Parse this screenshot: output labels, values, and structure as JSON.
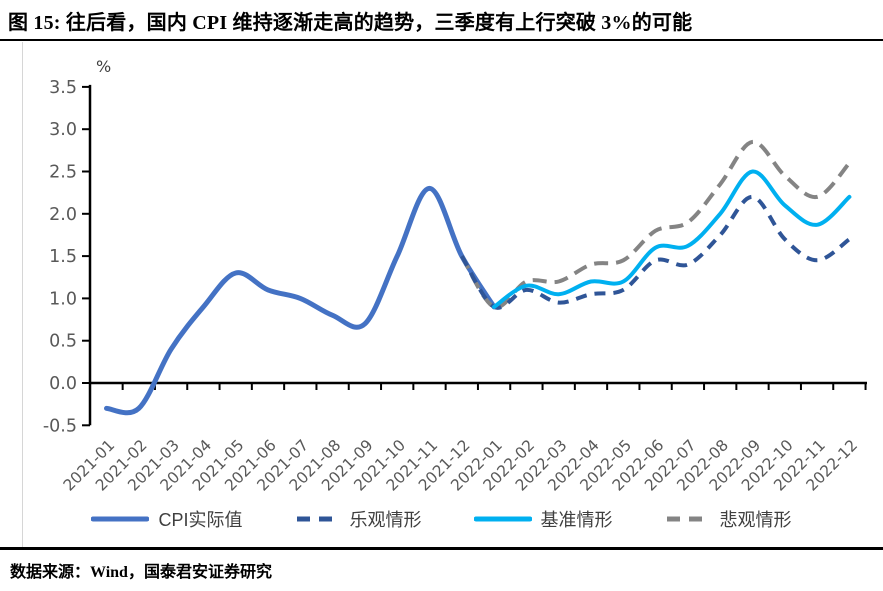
{
  "title": "图 15: 往后看，国内 CPI 维持逐渐走高的趋势，三季度有上行突破 3%的可能",
  "source": "数据来源：Wind，国泰君安证券研究",
  "chart_data": {
    "type": "line",
    "title": "",
    "unit_label": "%",
    "xlabel": "",
    "ylabel": "%",
    "ylim": [
      -0.5,
      3.5
    ],
    "ytick_step": 0.5,
    "ytick_labels": [
      "-0.5",
      "0.0",
      "0.5",
      "1.0",
      "1.5",
      "2.0",
      "2.5",
      "3.0",
      "3.5"
    ],
    "grid": false,
    "legend_position": "bottom",
    "x": [
      "2021-01",
      "2021-02",
      "2021-03",
      "2021-04",
      "2021-05",
      "2021-06",
      "2021-07",
      "2021-08",
      "2021-09",
      "2021-10",
      "2021-11",
      "2021-12",
      "2022-01",
      "2022-02",
      "2022-03",
      "2022-04",
      "2022-05",
      "2022-06",
      "2022-07",
      "2022-08",
      "2022-09",
      "2022-10",
      "2022-11",
      "2022-12"
    ],
    "series": [
      {
        "key": "actual",
        "name": "CPI实际值",
        "color": "#4472C4",
        "style": "solid",
        "start_index": 0,
        "values": [
          -0.3,
          -0.3,
          0.4,
          0.9,
          1.3,
          1.1,
          1.0,
          0.8,
          0.7,
          1.5,
          2.3,
          1.5,
          0.9
        ]
      },
      {
        "key": "optimistic",
        "name": "乐观情形",
        "color": "#2F5597",
        "style": "dashed",
        "start_index": 11,
        "values": [
          1.5,
          0.9,
          1.1,
          0.95,
          1.05,
          1.1,
          1.45,
          1.4,
          1.75,
          2.2,
          1.7,
          1.45,
          1.7
        ]
      },
      {
        "key": "baseline",
        "name": "基准情形",
        "color": "#00B0F0",
        "style": "solid",
        "start_index": 12,
        "values": [
          0.9,
          1.15,
          1.05,
          1.2,
          1.2,
          1.6,
          1.62,
          2.0,
          2.5,
          2.1,
          1.87,
          2.2
        ]
      },
      {
        "key": "pessimistic",
        "name": "悲观情形",
        "color": "#848484",
        "style": "dashed",
        "start_index": 11,
        "values": [
          1.5,
          0.9,
          1.2,
          1.2,
          1.4,
          1.45,
          1.8,
          1.9,
          2.35,
          2.85,
          2.45,
          2.2,
          2.6
        ]
      }
    ]
  }
}
